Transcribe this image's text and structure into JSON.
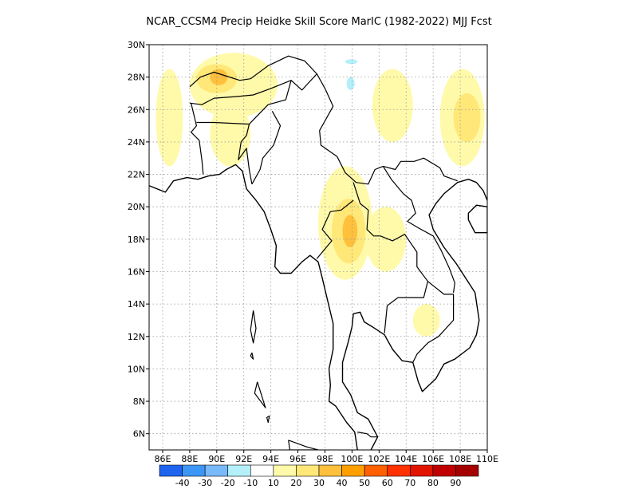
{
  "title": "NCAR_CCSM4 Precip Heidke Skill Score MarIC (1982-2022) MJJ Fcst",
  "chart_data": {
    "type": "heatmap",
    "variable": "Precip Heidke Skill Score",
    "model": "NCAR_CCSM4",
    "lon_range": [
      85,
      110
    ],
    "lat_range": [
      5,
      30
    ],
    "x_tick_labels": [
      "86E",
      "88E",
      "90E",
      "92E",
      "94E",
      "96E",
      "98E",
      "100E",
      "102E",
      "104E",
      "106E",
      "108E",
      "110E"
    ],
    "x_tick_values": [
      86,
      88,
      90,
      92,
      94,
      96,
      98,
      100,
      102,
      104,
      106,
      108,
      110
    ],
    "y_tick_labels": [
      "6N",
      "8N",
      "10N",
      "12N",
      "14N",
      "16N",
      "18N",
      "20N",
      "22N",
      "24N",
      "26N",
      "28N",
      "30N"
    ],
    "y_tick_values": [
      6,
      8,
      10,
      12,
      14,
      16,
      18,
      20,
      22,
      24,
      26,
      28,
      30
    ],
    "grid": true,
    "colorbar": {
      "placement": "bottom",
      "labels": [
        "-40",
        "-30",
        "-20",
        "-10",
        "10",
        "20",
        "30",
        "40",
        "50",
        "60",
        "70",
        "80",
        "90"
      ],
      "colors": [
        "#1e64f0",
        "#3c96f5",
        "#78b9fa",
        "#b4f0fa",
        "#ffffff",
        "#fffaaa",
        "#ffe878",
        "#ffc03c",
        "#ffa000",
        "#ff6000",
        "#ff3200",
        "#e11400",
        "#c00000",
        "#a50000"
      ]
    },
    "regions": [
      {
        "level": 10,
        "lon": [
          85.5,
          87.5
        ],
        "lat": [
          22.5,
          28.5
        ]
      },
      {
        "level": 10,
        "lon": [
          88.0,
          94.5
        ],
        "lat": [
          25.5,
          29.5
        ]
      },
      {
        "level": 20,
        "lon": [
          88.5,
          91.5
        ],
        "lat": [
          27.0,
          28.8
        ]
      },
      {
        "level": 30,
        "lon": [
          89.5,
          90.8
        ],
        "lat": [
          27.5,
          28.5
        ]
      },
      {
        "level": 10,
        "lon": [
          89.5,
          92.5
        ],
        "lat": [
          22.5,
          26.5
        ]
      },
      {
        "level": 10,
        "lon": [
          97.5,
          101.5
        ],
        "lat": [
          15.5,
          22.5
        ]
      },
      {
        "level": 20,
        "lon": [
          98.5,
          101.0
        ],
        "lat": [
          16.5,
          20.5
        ]
      },
      {
        "level": 30,
        "lon": [
          99.3,
          100.4
        ],
        "lat": [
          17.5,
          19.5
        ]
      },
      {
        "level": 10,
        "lon": [
          101.0,
          104.0
        ],
        "lat": [
          16.0,
          20.0
        ]
      },
      {
        "level": 10,
        "lon": [
          106.5,
          109.8
        ],
        "lat": [
          22.5,
          28.5
        ]
      },
      {
        "level": 20,
        "lon": [
          107.5,
          109.5
        ],
        "lat": [
          24.0,
          27.0
        ]
      },
      {
        "level": 10,
        "lon": [
          101.5,
          104.5
        ],
        "lat": [
          24.0,
          28.5
        ]
      },
      {
        "level": 10,
        "lon": [
          104.5,
          106.5
        ],
        "lat": [
          12.0,
          14.0
        ]
      },
      {
        "level": -10,
        "lon": [
          98.5,
          101.5
        ],
        "lat": [
          26.5,
          30.0
        ]
      },
      {
        "level": -20,
        "lon": [
          99.6,
          100.2
        ],
        "lat": [
          27.2,
          28.0
        ]
      },
      {
        "level": -20,
        "lon": [
          99.5,
          100.4
        ],
        "lat": [
          28.8,
          29.1
        ]
      },
      {
        "level": -10,
        "lon": [
          95.0,
          97.0
        ],
        "lat": [
          24.0,
          24.8
        ]
      },
      {
        "level": -10,
        "lon": [
          85.0,
          85.5
        ],
        "lat": [
          20.8,
          21.8
        ]
      },
      {
        "level": -10,
        "lon": [
          95.3,
          96.5
        ],
        "lat": [
          29.5,
          30.0
        ]
      }
    ]
  }
}
